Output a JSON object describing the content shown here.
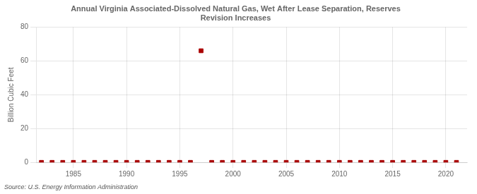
{
  "chart_data": {
    "type": "scatter",
    "title": "Annual Virginia Associated-Dissolved Natural Gas, Wet After Lease Separation, Reserves\nRevision Increases",
    "ylabel": "Billion Cubic Feet",
    "source": "Source: U.S. Energy Information Administration",
    "x": [
      1982,
      1983,
      1984,
      1985,
      1986,
      1987,
      1988,
      1989,
      1990,
      1991,
      1992,
      1993,
      1994,
      1995,
      1996,
      1997,
      1998,
      1999,
      2000,
      2001,
      2002,
      2003,
      2004,
      2005,
      2006,
      2007,
      2008,
      2009,
      2010,
      2011,
      2012,
      2013,
      2014,
      2015,
      2016,
      2017,
      2018,
      2019,
      2020,
      2021
    ],
    "values": [
      0,
      0,
      0,
      0,
      0,
      0,
      0,
      0,
      0,
      0,
      0,
      0,
      0,
      0,
      0,
      66,
      0,
      0,
      0,
      0,
      0,
      0,
      0,
      0,
      0,
      0,
      0,
      0,
      0,
      0,
      0,
      0,
      0,
      0,
      0,
      0,
      0,
      0,
      0,
      0
    ],
    "color": "#aa0000",
    "marker": "square",
    "xlim": [
      1981.5,
      2022
    ],
    "ylim": [
      0,
      80
    ],
    "xticks": [
      1985,
      1990,
      1995,
      2000,
      2005,
      2010,
      2015,
      2020
    ],
    "yticks": [
      0,
      20,
      40,
      60,
      80
    ],
    "grid": true
  }
}
